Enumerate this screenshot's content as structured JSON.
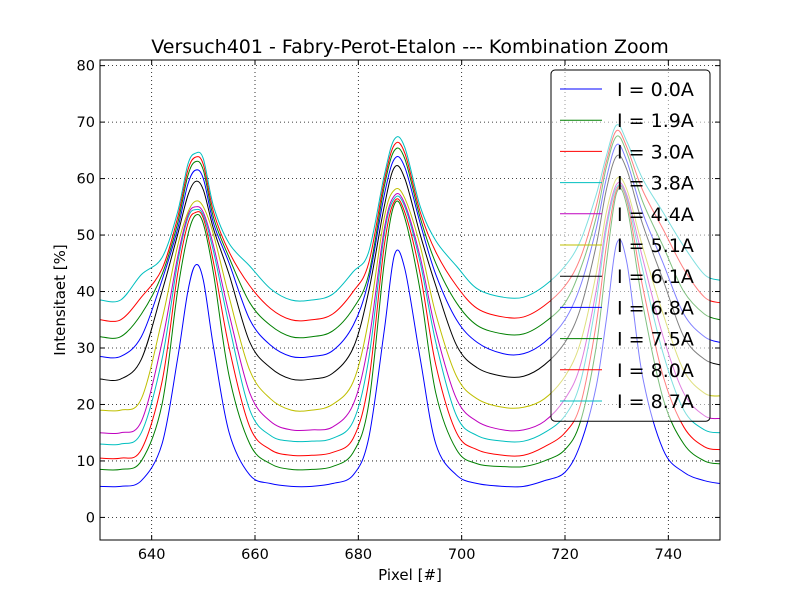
{
  "chart_data": {
    "type": "line",
    "title": "Versuch401 - Fabry-Perot-Etalon ---  Kombination Zoom",
    "xlabel": "Pixel [#]",
    "ylabel": "Intensitaet [%]",
    "xlim": [
      630,
      750
    ],
    "ylim": [
      -4,
      81
    ],
    "xticks": [
      640,
      660,
      680,
      700,
      720,
      740
    ],
    "yticks": [
      0,
      10,
      20,
      30,
      40,
      50,
      60,
      70,
      80
    ],
    "xtick_labels": [
      "640",
      "660",
      "680",
      "700",
      "720",
      "740"
    ],
    "ytick_labels": [
      "0",
      "10",
      "20",
      "30",
      "40",
      "50",
      "60",
      "70",
      "80"
    ],
    "grid": true,
    "legend_position": "top-right",
    "x": [
      630,
      634,
      638,
      642,
      645,
      647,
      648.5,
      650,
      652,
      655,
      659,
      663,
      667,
      671,
      675,
      679,
      682,
      685,
      687,
      689,
      692,
      695,
      699,
      703,
      708,
      712,
      716,
      720,
      723,
      726,
      728,
      730,
      732,
      735,
      739,
      743,
      747,
      750
    ],
    "series": [
      {
        "name": "I = 0.0A",
        "color": "#0000ff",
        "values": [
          5.5,
          5.5,
          6.5,
          13,
          28,
          40,
          44.7,
          42,
          30,
          15,
          7.5,
          6,
          5.5,
          5.5,
          6,
          7.5,
          14,
          33,
          46.5,
          44,
          28,
          13,
          7.5,
          6,
          5.5,
          5.5,
          6.5,
          8,
          13,
          23,
          35,
          48.5,
          45,
          25,
          12,
          8,
          6.5,
          6
        ]
      },
      {
        "name": "I = 1.9A",
        "color": "#008000",
        "values": [
          8.5,
          8.5,
          10,
          20,
          40,
          50,
          53.5,
          52,
          43,
          25,
          13,
          9.5,
          8.5,
          8.5,
          9,
          11.5,
          20,
          45,
          55.5,
          53,
          40,
          22,
          12,
          9.5,
          9,
          9,
          10,
          12,
          17,
          30,
          45,
          57.5,
          55,
          38,
          21,
          13,
          10,
          9.5
        ]
      },
      {
        "name": "I = 3.0A",
        "color": "#ff0000",
        "values": [
          10.5,
          10.5,
          12,
          24,
          43,
          52,
          54,
          53,
          45,
          30,
          16,
          12,
          11,
          11,
          11.5,
          14,
          24,
          48,
          56,
          54,
          43,
          27,
          15,
          12,
          11,
          11,
          12.5,
          15,
          20,
          34,
          48,
          58,
          56,
          41,
          25,
          16,
          12.5,
          12
        ]
      },
      {
        "name": "I = 3.8A",
        "color": "#00bfbf",
        "values": [
          13,
          13,
          15,
          28,
          45,
          53,
          54.5,
          53.5,
          47,
          34,
          19,
          14.5,
          13.5,
          13.5,
          14,
          17,
          28,
          50,
          56.5,
          55,
          45,
          31,
          18,
          14.5,
          13.5,
          13.5,
          15,
          18,
          24,
          38,
          51,
          58.5,
          56.5,
          44,
          29,
          19,
          15.5,
          15
        ]
      },
      {
        "name": "I = 4.4A",
        "color": "#bf00bf",
        "values": [
          15,
          15,
          17,
          31,
          46,
          53.5,
          55,
          54,
          48,
          36,
          22,
          17,
          15.5,
          15.5,
          16,
          20,
          31,
          51,
          57,
          55.5,
          46,
          33,
          21,
          17,
          15.5,
          15.5,
          17,
          21,
          27,
          40,
          52,
          59,
          57,
          46,
          32,
          22,
          18,
          17.5
        ]
      },
      {
        "name": "I = 5.1A",
        "color": "#bfbf00",
        "values": [
          19,
          19,
          21,
          35,
          48,
          54,
          56,
          55,
          50,
          39,
          26,
          21,
          19,
          19,
          20,
          24,
          35,
          53,
          58,
          56.5,
          48,
          36,
          25,
          21,
          19.5,
          19.5,
          21,
          25,
          31,
          43,
          54,
          60,
          58,
          48,
          36,
          26,
          22,
          21.5
        ]
      },
      {
        "name": "I = 6.1A",
        "color": "#000000",
        "values": [
          24.5,
          24.5,
          28,
          40,
          50,
          57,
          59.5,
          58,
          51,
          43,
          31,
          26.5,
          24.5,
          24.5,
          25.5,
          30,
          40,
          55,
          62,
          60,
          50,
          41,
          30.5,
          26.5,
          25,
          25,
          27,
          31,
          37,
          48,
          58,
          64,
          61.5,
          52,
          42,
          32,
          28,
          27
        ]
      },
      {
        "name": "I = 6.8A",
        "color": "#0000ff",
        "values": [
          28.5,
          28.5,
          32,
          42,
          51,
          59,
          61.5,
          60,
          52,
          45,
          35,
          30.5,
          28.5,
          28.5,
          29.5,
          34,
          42,
          57,
          63.5,
          62,
          52,
          43,
          35,
          31,
          29,
          29,
          31,
          35,
          41,
          51,
          60,
          66,
          63,
          54,
          45,
          36,
          32,
          31
        ]
      },
      {
        "name": "I = 7.5A",
        "color": "#008000",
        "values": [
          32,
          32,
          36,
          43,
          52,
          60.5,
          63,
          61.5,
          53,
          46,
          38,
          34,
          32,
          32,
          33,
          37,
          43,
          58.5,
          65,
          63.5,
          53,
          45,
          38,
          34,
          32.5,
          32.5,
          34.5,
          38,
          44,
          53,
          62,
          67.5,
          64.5,
          56,
          48,
          40,
          36,
          35
        ]
      },
      {
        "name": "I = 8.0A",
        "color": "#ff0000",
        "values": [
          35,
          35,
          39,
          44,
          53,
          61.5,
          63.8,
          62.5,
          54,
          47,
          41,
          37,
          35,
          35,
          36,
          40,
          45,
          59.5,
          66,
          64.5,
          54,
          47,
          41,
          37,
          35.5,
          35.5,
          37.5,
          41,
          46,
          55,
          63,
          68.5,
          65.5,
          58,
          51,
          44,
          39,
          38
        ]
      },
      {
        "name": "I = 8.7A",
        "color": "#00bfbf",
        "values": [
          38.5,
          38.5,
          43,
          46,
          54,
          62.5,
          64.5,
          63.5,
          55,
          48.5,
          44.5,
          40.5,
          38.5,
          38.5,
          39.5,
          43.5,
          47,
          60.5,
          67,
          65.5,
          55,
          49,
          44.5,
          40.5,
          39,
          39,
          41,
          44.5,
          49,
          57,
          64,
          69.5,
          66.5,
          60,
          54,
          48,
          43,
          42
        ]
      }
    ]
  }
}
